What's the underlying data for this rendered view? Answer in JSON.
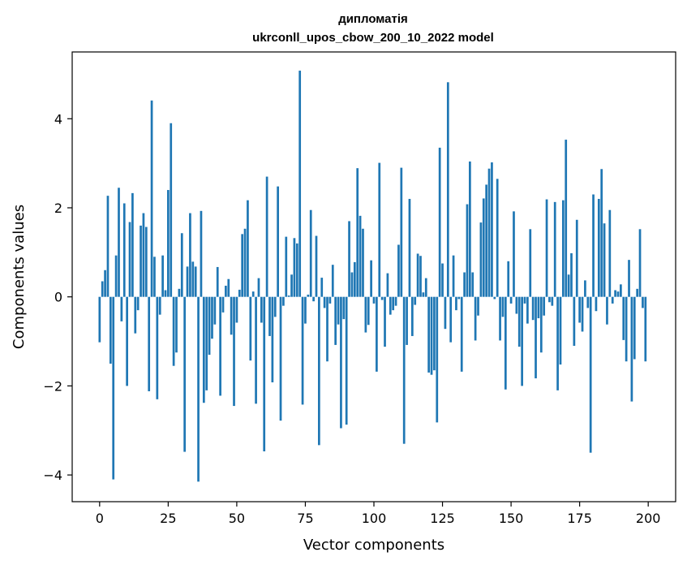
{
  "chart_data": {
    "type": "bar",
    "title": "дипломатія",
    "subtitle": "ukrconll_upos_cbow_200_10_2022 model",
    "xlabel": "Vector components",
    "ylabel": "Components values",
    "xlim": [
      -10,
      210
    ],
    "ylim": [
      -4.6,
      5.5
    ],
    "xticks": [
      0,
      25,
      50,
      75,
      100,
      125,
      150,
      175,
      200
    ],
    "xtick_labels": [
      "0",
      "25",
      "50",
      "75",
      "100",
      "125",
      "150",
      "175",
      "200"
    ],
    "yticks": [
      -4,
      -2,
      0,
      2,
      4
    ],
    "ytick_labels": [
      "−4",
      "−2",
      "0",
      "2",
      "4"
    ],
    "grid": false,
    "bar_color": "#1f77b4",
    "x": [
      0,
      1,
      2,
      3,
      4,
      5,
      6,
      7,
      8,
      9,
      10,
      11,
      12,
      13,
      14,
      15,
      16,
      17,
      18,
      19,
      20,
      21,
      22,
      23,
      24,
      25,
      26,
      27,
      28,
      29,
      30,
      31,
      32,
      33,
      34,
      35,
      36,
      37,
      38,
      39,
      40,
      41,
      42,
      43,
      44,
      45,
      46,
      47,
      48,
      49,
      50,
      51,
      52,
      53,
      54,
      55,
      56,
      57,
      58,
      59,
      60,
      61,
      62,
      63,
      64,
      65,
      66,
      67,
      68,
      69,
      70,
      71,
      72,
      73,
      74,
      75,
      76,
      77,
      78,
      79,
      80,
      81,
      82,
      83,
      84,
      85,
      86,
      87,
      88,
      89,
      90,
      91,
      92,
      93,
      94,
      95,
      96,
      97,
      98,
      99,
      100,
      101,
      102,
      103,
      104,
      105,
      106,
      107,
      108,
      109,
      110,
      111,
      112,
      113,
      114,
      115,
      116,
      117,
      118,
      119,
      120,
      121,
      122,
      123,
      124,
      125,
      126,
      127,
      128,
      129,
      130,
      131,
      132,
      133,
      134,
      135,
      136,
      137,
      138,
      139,
      140,
      141,
      142,
      143,
      144,
      145,
      146,
      147,
      148,
      149,
      150,
      151,
      152,
      153,
      154,
      155,
      156,
      157,
      158,
      159,
      160,
      161,
      162,
      163,
      164,
      165,
      166,
      167,
      168,
      169,
      170,
      171,
      172,
      173,
      174,
      175,
      176,
      177,
      178,
      179,
      180,
      181,
      182,
      183,
      184,
      185,
      186,
      187,
      188,
      189,
      190,
      191,
      192,
      193,
      194,
      195,
      196,
      197,
      198,
      199
    ],
    "values": [
      -1.02,
      0.35,
      0.6,
      2.27,
      -1.5,
      -4.1,
      0.93,
      2.45,
      -0.55,
      2.1,
      -2.0,
      1.68,
      2.33,
      -0.82,
      -0.3,
      1.6,
      1.88,
      1.57,
      -2.12,
      4.41,
      0.9,
      -2.3,
      -0.4,
      0.93,
      0.15,
      2.4,
      3.9,
      -1.55,
      -1.25,
      0.18,
      1.43,
      -3.48,
      0.68,
      1.88,
      0.79,
      0.68,
      -4.15,
      1.93,
      -2.38,
      -2.1,
      -1.3,
      -0.94,
      -0.62,
      0.67,
      -2.22,
      -0.35,
      0.25,
      0.4,
      -0.85,
      -2.45,
      -0.58,
      0.16,
      1.41,
      1.53,
      2.17,
      -1.43,
      0.12,
      -2.4,
      0.42,
      -0.58,
      -3.47,
      2.7,
      -0.88,
      -1.92,
      -0.45,
      2.48,
      -2.78,
      -0.2,
      1.35,
      0.03,
      0.5,
      1.32,
      1.2,
      5.08,
      -2.42,
      -0.6,
      0.05,
      1.95,
      -0.1,
      1.37,
      -3.33,
      0.43,
      -0.25,
      -1.45,
      -0.15,
      0.72,
      -1.08,
      -0.62,
      -2.95,
      -0.5,
      -2.87,
      1.7,
      0.55,
      0.78,
      2.89,
      1.82,
      1.53,
      -0.8,
      -0.63,
      0.82,
      -0.15,
      -1.68,
      3.01,
      -0.07,
      -1.12,
      0.53,
      -0.4,
      -0.3,
      -0.2,
      1.17,
      2.9,
      -3.3,
      -1.08,
      2.2,
      -0.88,
      -0.18,
      0.97,
      0.92,
      0.1,
      0.42,
      -1.7,
      -1.75,
      -1.65,
      -2.82,
      3.35,
      0.75,
      -0.72,
      4.82,
      -1.02,
      0.93,
      -0.3,
      -0.05,
      -1.68,
      0.55,
      2.08,
      3.04,
      0.55,
      -0.98,
      -0.42,
      1.67,
      2.21,
      2.52,
      2.88,
      3.02,
      -0.05,
      2.65,
      -0.98,
      -0.45,
      -2.08,
      0.8,
      -0.15,
      1.92,
      -0.38,
      -1.12,
      -2.0,
      -0.15,
      -0.6,
      1.52,
      -0.52,
      -1.83,
      -0.48,
      -1.25,
      -0.42,
      2.19,
      -0.12,
      -0.2,
      2.13,
      -2.1,
      -1.52,
      2.17,
      3.53,
      0.5,
      0.98,
      -1.1,
      1.73,
      -0.58,
      -0.78,
      0.37,
      -0.25,
      -3.5,
      2.3,
      -0.32,
      2.2,
      2.87,
      1.65,
      -0.62,
      1.95,
      -0.15,
      0.15,
      0.12,
      0.28,
      -0.97,
      -1.45,
      0.83,
      -2.35,
      -1.4,
      0.18,
      1.52,
      -0.25,
      -1.45
    ]
  }
}
